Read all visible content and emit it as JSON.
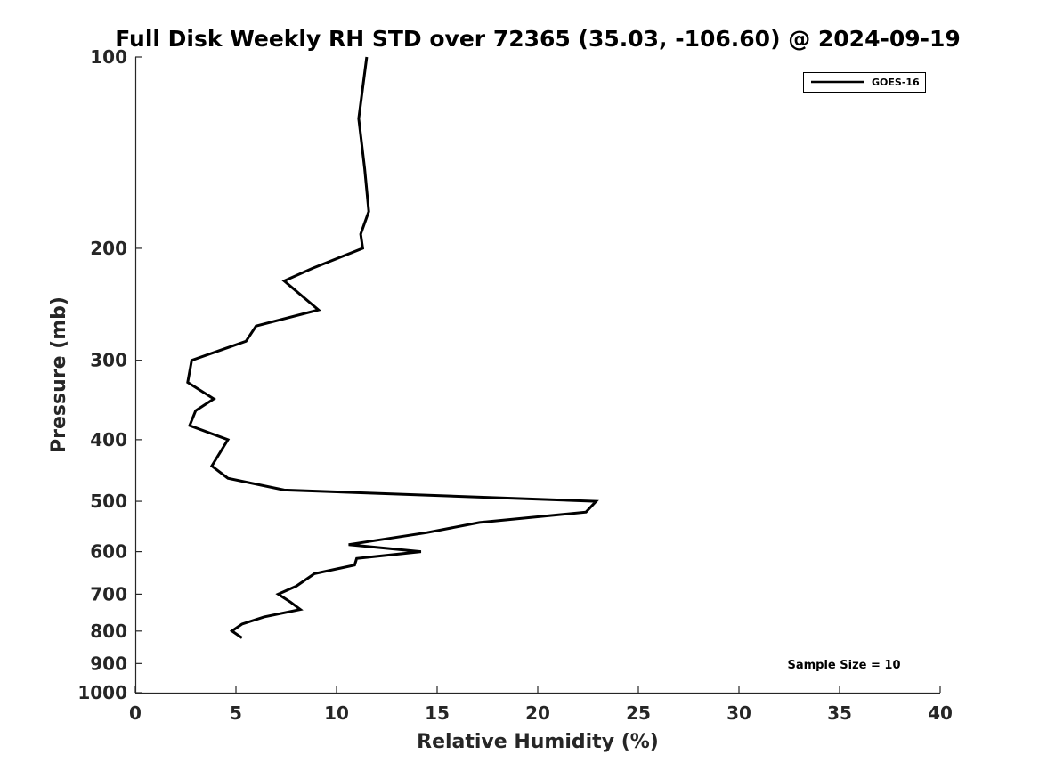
{
  "chart_data": {
    "type": "line",
    "title": "Full Disk Weekly RH STD over 72365 (35.03, -106.60) @ 2024-09-19",
    "xlabel": "Relative Humidity (%)",
    "ylabel": "Pressure (mb)",
    "xlim": [
      0,
      40
    ],
    "ylim": [
      100,
      1000
    ],
    "y_scale": "log",
    "y_reversed": true,
    "grid": false,
    "legend_position": "top-right",
    "x_ticks": [
      0,
      5,
      10,
      15,
      20,
      25,
      30,
      35,
      40
    ],
    "x_tick_labels": [
      "0",
      "5",
      "10",
      "15",
      "20",
      "25",
      "30",
      "35",
      "40"
    ],
    "y_ticks": [
      100,
      200,
      300,
      400,
      500,
      600,
      700,
      800,
      900,
      1000
    ],
    "y_tick_labels": [
      "100",
      "200",
      "300",
      "400",
      "500",
      "600",
      "700",
      "800",
      "900",
      "1000"
    ],
    "annotation": "Sample Size = 10",
    "series": [
      {
        "name": "GOES-16",
        "color": "#000000",
        "points": [
          {
            "x": 11.5,
            "y": 100
          },
          {
            "x": 11.1,
            "y": 125
          },
          {
            "x": 11.4,
            "y": 150
          },
          {
            "x": 11.6,
            "y": 175
          },
          {
            "x": 11.2,
            "y": 190
          },
          {
            "x": 11.3,
            "y": 200
          },
          {
            "x": 8.8,
            "y": 215
          },
          {
            "x": 7.4,
            "y": 225
          },
          {
            "x": 9.1,
            "y": 250
          },
          {
            "x": 6.0,
            "y": 265
          },
          {
            "x": 5.5,
            "y": 280
          },
          {
            "x": 2.8,
            "y": 300
          },
          {
            "x": 2.6,
            "y": 325
          },
          {
            "x": 3.9,
            "y": 345
          },
          {
            "x": 3.0,
            "y": 360
          },
          {
            "x": 2.7,
            "y": 380
          },
          {
            "x": 4.6,
            "y": 400
          },
          {
            "x": 3.8,
            "y": 440
          },
          {
            "x": 4.6,
            "y": 460
          },
          {
            "x": 7.4,
            "y": 480
          },
          {
            "x": 22.9,
            "y": 500
          },
          {
            "x": 22.4,
            "y": 520
          },
          {
            "x": 17.1,
            "y": 540
          },
          {
            "x": 14.5,
            "y": 560
          },
          {
            "x": 10.6,
            "y": 585
          },
          {
            "x": 14.2,
            "y": 600
          },
          {
            "x": 11.0,
            "y": 615
          },
          {
            "x": 10.9,
            "y": 630
          },
          {
            "x": 8.9,
            "y": 650
          },
          {
            "x": 8.0,
            "y": 680
          },
          {
            "x": 7.1,
            "y": 700
          },
          {
            "x": 7.7,
            "y": 720
          },
          {
            "x": 8.2,
            "y": 740
          },
          {
            "x": 6.4,
            "y": 760
          },
          {
            "x": 5.3,
            "y": 780
          },
          {
            "x": 4.8,
            "y": 800
          },
          {
            "x": 5.3,
            "y": 820
          }
        ]
      }
    ]
  }
}
